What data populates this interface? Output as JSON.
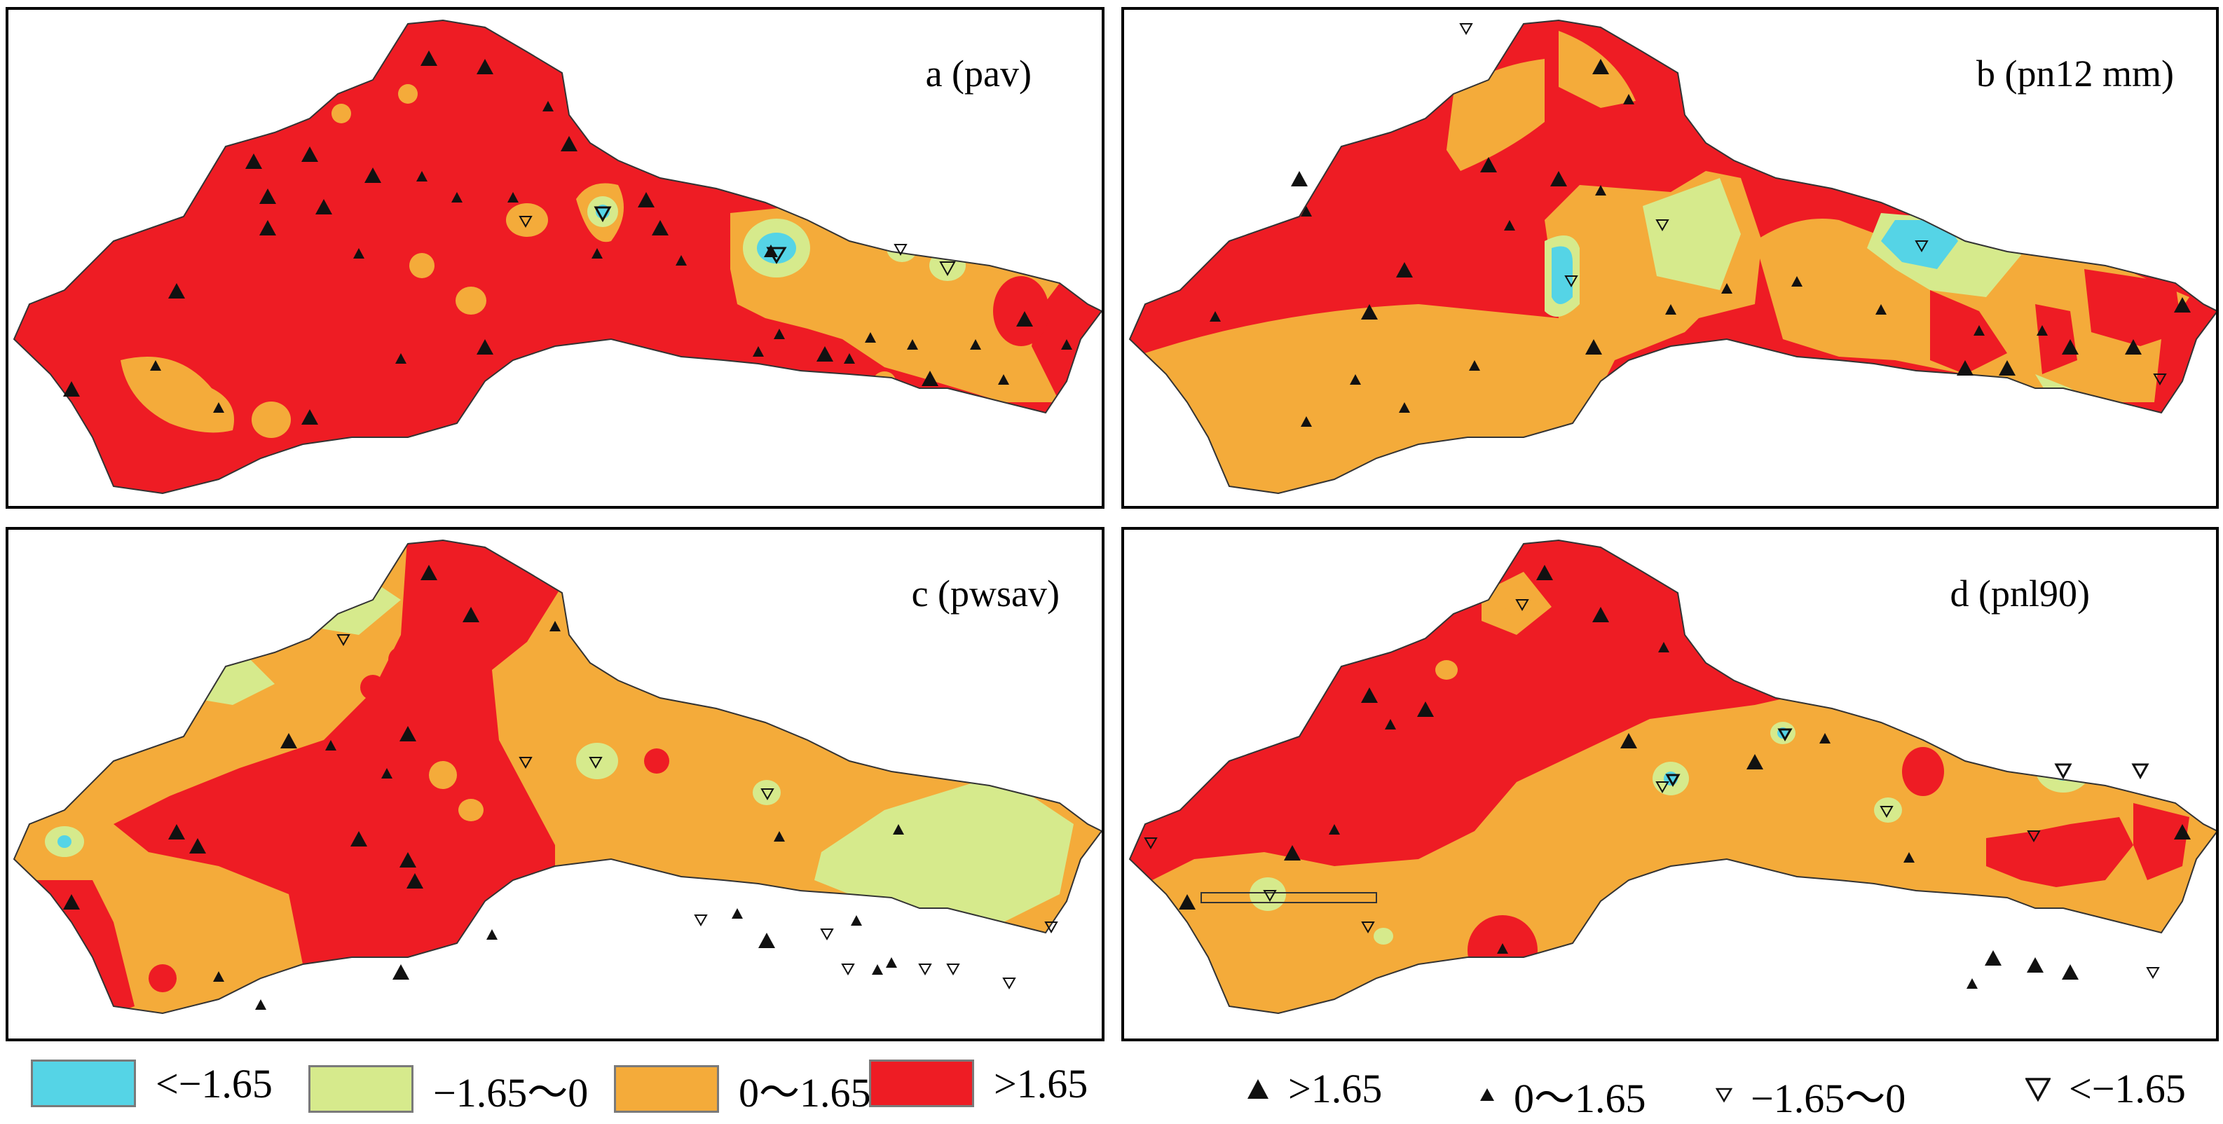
{
  "panels": [
    {
      "id": "a",
      "title": "a (pav)"
    },
    {
      "id": "b",
      "title": "b (pn12 mm)"
    },
    {
      "id": "c",
      "title": "c (pwsav)"
    },
    {
      "id": "d",
      "title": "d (pnl90)"
    }
  ],
  "legend": {
    "fills": [
      {
        "label": "<−1.65",
        "color": "#55d4e6"
      },
      {
        "label": "−1.65～0",
        "color": "#d6ea8c"
      },
      {
        "label": "0～1.65",
        "color": "#f4ab3a"
      },
      {
        "label": ">1.65",
        "color": "#ee1c24"
      }
    ],
    "symbols": [
      {
        "label": ">1.65",
        "icon": "large-filled-triangle-up-icon"
      },
      {
        "label": "0～1.65",
        "icon": "small-filled-triangle-up-icon"
      },
      {
        "label": "−1.65～0",
        "icon": "small-hollow-triangle-down-icon"
      },
      {
        "label": "<−1.65",
        "icon": "large-hollow-triangle-down-icon"
      }
    ]
  }
}
